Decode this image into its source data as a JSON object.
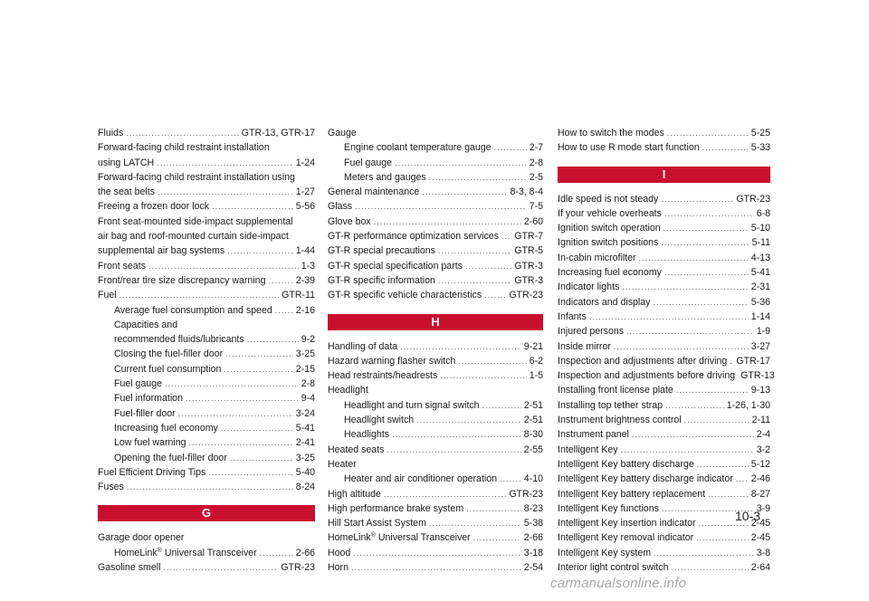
{
  "page_number": "10-3",
  "watermark": "carmanualsonline.info",
  "columns": [
    [
      {
        "text": "Fluids",
        "page": "GTR-13, GTR-17"
      },
      {
        "text": "Forward-facing child restraint installation",
        "plain": true
      },
      {
        "text": "using LATCH",
        "page": "1-24"
      },
      {
        "text": "Forward-facing child restraint installation using",
        "plain": true
      },
      {
        "text": "the seat belts",
        "page": "1-27"
      },
      {
        "text": "Freeing a frozen door lock",
        "page": "5-56"
      },
      {
        "text": "Front seat-mounted side-impact supplemental",
        "plain": true
      },
      {
        "text": "air bag and roof-mounted curtain side-impact",
        "plain": true
      },
      {
        "text": "supplemental air bag systems",
        "page": "1-44"
      },
      {
        "text": "Front seats",
        "page": "1-3"
      },
      {
        "text": "Front/rear tire size discrepancy warning",
        "page": "2-39"
      },
      {
        "text": "Fuel",
        "page": "GTR-11"
      },
      {
        "text": "Average fuel consumption and speed",
        "page": "2-16",
        "sub": true
      },
      {
        "text": "Capacities and",
        "plain": true,
        "sub": true
      },
      {
        "text": "recommended fluids/lubricants",
        "page": "9-2",
        "sub": true
      },
      {
        "text": "Closing the fuel-filler door",
        "page": "3-25",
        "sub": true
      },
      {
        "text": "Current fuel consumption",
        "page": "2-15",
        "sub": true
      },
      {
        "text": "Fuel gauge",
        "page": "2-8",
        "sub": true
      },
      {
        "text": "Fuel information",
        "page": "9-4",
        "sub": true
      },
      {
        "text": "Fuel-filler door",
        "page": "3-24",
        "sub": true
      },
      {
        "text": "Increasing fuel economy",
        "page": "5-41",
        "sub": true
      },
      {
        "text": "Low fuel warning",
        "page": "2-41",
        "sub": true
      },
      {
        "text": "Opening the fuel-filler door",
        "page": "3-25",
        "sub": true
      },
      {
        "text": "Fuel Efficient Driving Tips",
        "page": "5-40"
      },
      {
        "text": "Fuses",
        "page": "8-24"
      },
      {
        "heading": "G"
      },
      {
        "text": "Garage door opener",
        "plain": true
      },
      {
        "text": "HomeLink",
        "sup": "®",
        "rest": " Universal Transceiver",
        "page": "2-66",
        "sub": true
      },
      {
        "text": "Gasoline smell",
        "page": "GTR-23"
      }
    ],
    [
      {
        "text": "Gauge",
        "plain": true
      },
      {
        "text": "Engine coolant temperature gauge",
        "page": "2-7",
        "sub": true
      },
      {
        "text": "Fuel gauge",
        "page": "2-8",
        "sub": true
      },
      {
        "text": "Meters and gauges",
        "page": "2-5",
        "sub": true
      },
      {
        "text": "General maintenance",
        "page": "8-3, 8-4"
      },
      {
        "text": "Glass",
        "page": "7-5"
      },
      {
        "text": "Glove box",
        "page": "2-60"
      },
      {
        "text": "GT-R performance optimization services",
        "page": "GTR-7"
      },
      {
        "text": "GT-R special precautions",
        "page": "GTR-5"
      },
      {
        "text": "GT-R special specification parts",
        "page": "GTR-3"
      },
      {
        "text": "GT-R specific information",
        "page": "GTR-3"
      },
      {
        "text": "GT-R specific vehicle characteristics",
        "page": "GTR-23"
      },
      {
        "heading": "H"
      },
      {
        "text": "Handling of data",
        "page": "9-21"
      },
      {
        "text": "Hazard warning flasher switch",
        "page": "6-2"
      },
      {
        "text": "Head restraints/headrests",
        "page": "1-5"
      },
      {
        "text": "Headlight",
        "plain": true
      },
      {
        "text": "Headlight and turn signal switch",
        "page": "2-51",
        "sub": true
      },
      {
        "text": "Headlight switch",
        "page": "2-51",
        "sub": true
      },
      {
        "text": "Headlights",
        "page": "8-30",
        "sub": true
      },
      {
        "text": "Heated seats",
        "page": "2-55"
      },
      {
        "text": "Heater",
        "plain": true
      },
      {
        "text": "Heater and air conditioner operation",
        "page": "4-10",
        "sub": true
      },
      {
        "text": "High altitude",
        "page": "GTR-23"
      },
      {
        "text": "High performance brake system",
        "page": "8-23"
      },
      {
        "text": "Hill Start Assist System",
        "page": "5-38"
      },
      {
        "text": "HomeLink",
        "sup": "®",
        "rest": " Universal Transceiver",
        "page": "2-66"
      },
      {
        "text": "Hood",
        "page": "3-18"
      },
      {
        "text": "Horn",
        "page": "2-54"
      }
    ],
    [
      {
        "text": "How to switch the modes",
        "page": "5-25"
      },
      {
        "text": "How to use R mode start function",
        "page": "5-33"
      },
      {
        "heading": "I"
      },
      {
        "text": "Idle speed is not steady",
        "page": "GTR-23"
      },
      {
        "text": "If your vehicle overheats",
        "page": "6-8"
      },
      {
        "text": "Ignition switch operation",
        "page": "5-10"
      },
      {
        "text": "Ignition switch positions",
        "page": "5-11"
      },
      {
        "text": "In-cabin microfilter",
        "page": "4-13"
      },
      {
        "text": "Increasing fuel economy",
        "page": "5-41"
      },
      {
        "text": "Indicator lights",
        "page": "2-31"
      },
      {
        "text": "Indicators and display",
        "page": "5-36"
      },
      {
        "text": "Infants",
        "page": "1-14"
      },
      {
        "text": "Injured persons",
        "page": "1-9"
      },
      {
        "text": "Inside mirror",
        "page": "3-27"
      },
      {
        "text": "Inspection and adjustments after driving",
        "page": "GTR-17"
      },
      {
        "text": "Inspection and adjustments before driving",
        "page": "GTR-13"
      },
      {
        "text": "Installing front license plate",
        "page": "9-13"
      },
      {
        "text": "Installing top tether strap",
        "page": "1-26, 1-30"
      },
      {
        "text": "Instrument brightness control",
        "page": "2-11"
      },
      {
        "text": "Instrument panel",
        "page": "2-4"
      },
      {
        "text": "Intelligent Key",
        "page": "3-2"
      },
      {
        "text": "Intelligent Key battery discharge",
        "page": "5-12"
      },
      {
        "text": "Intelligent Key battery discharge indicator",
        "page": "2-46"
      },
      {
        "text": "Intelligent Key battery replacement",
        "page": "8-27"
      },
      {
        "text": "Intelligent Key functions",
        "page": "3-9"
      },
      {
        "text": "Intelligent Key insertion indicator",
        "page": "2-45"
      },
      {
        "text": "Intelligent Key removal indicator",
        "page": "2-45"
      },
      {
        "text": "Intelligent Key system",
        "page": "3-8"
      },
      {
        "text": "Interior light control switch",
        "page": "2-64"
      }
    ]
  ]
}
